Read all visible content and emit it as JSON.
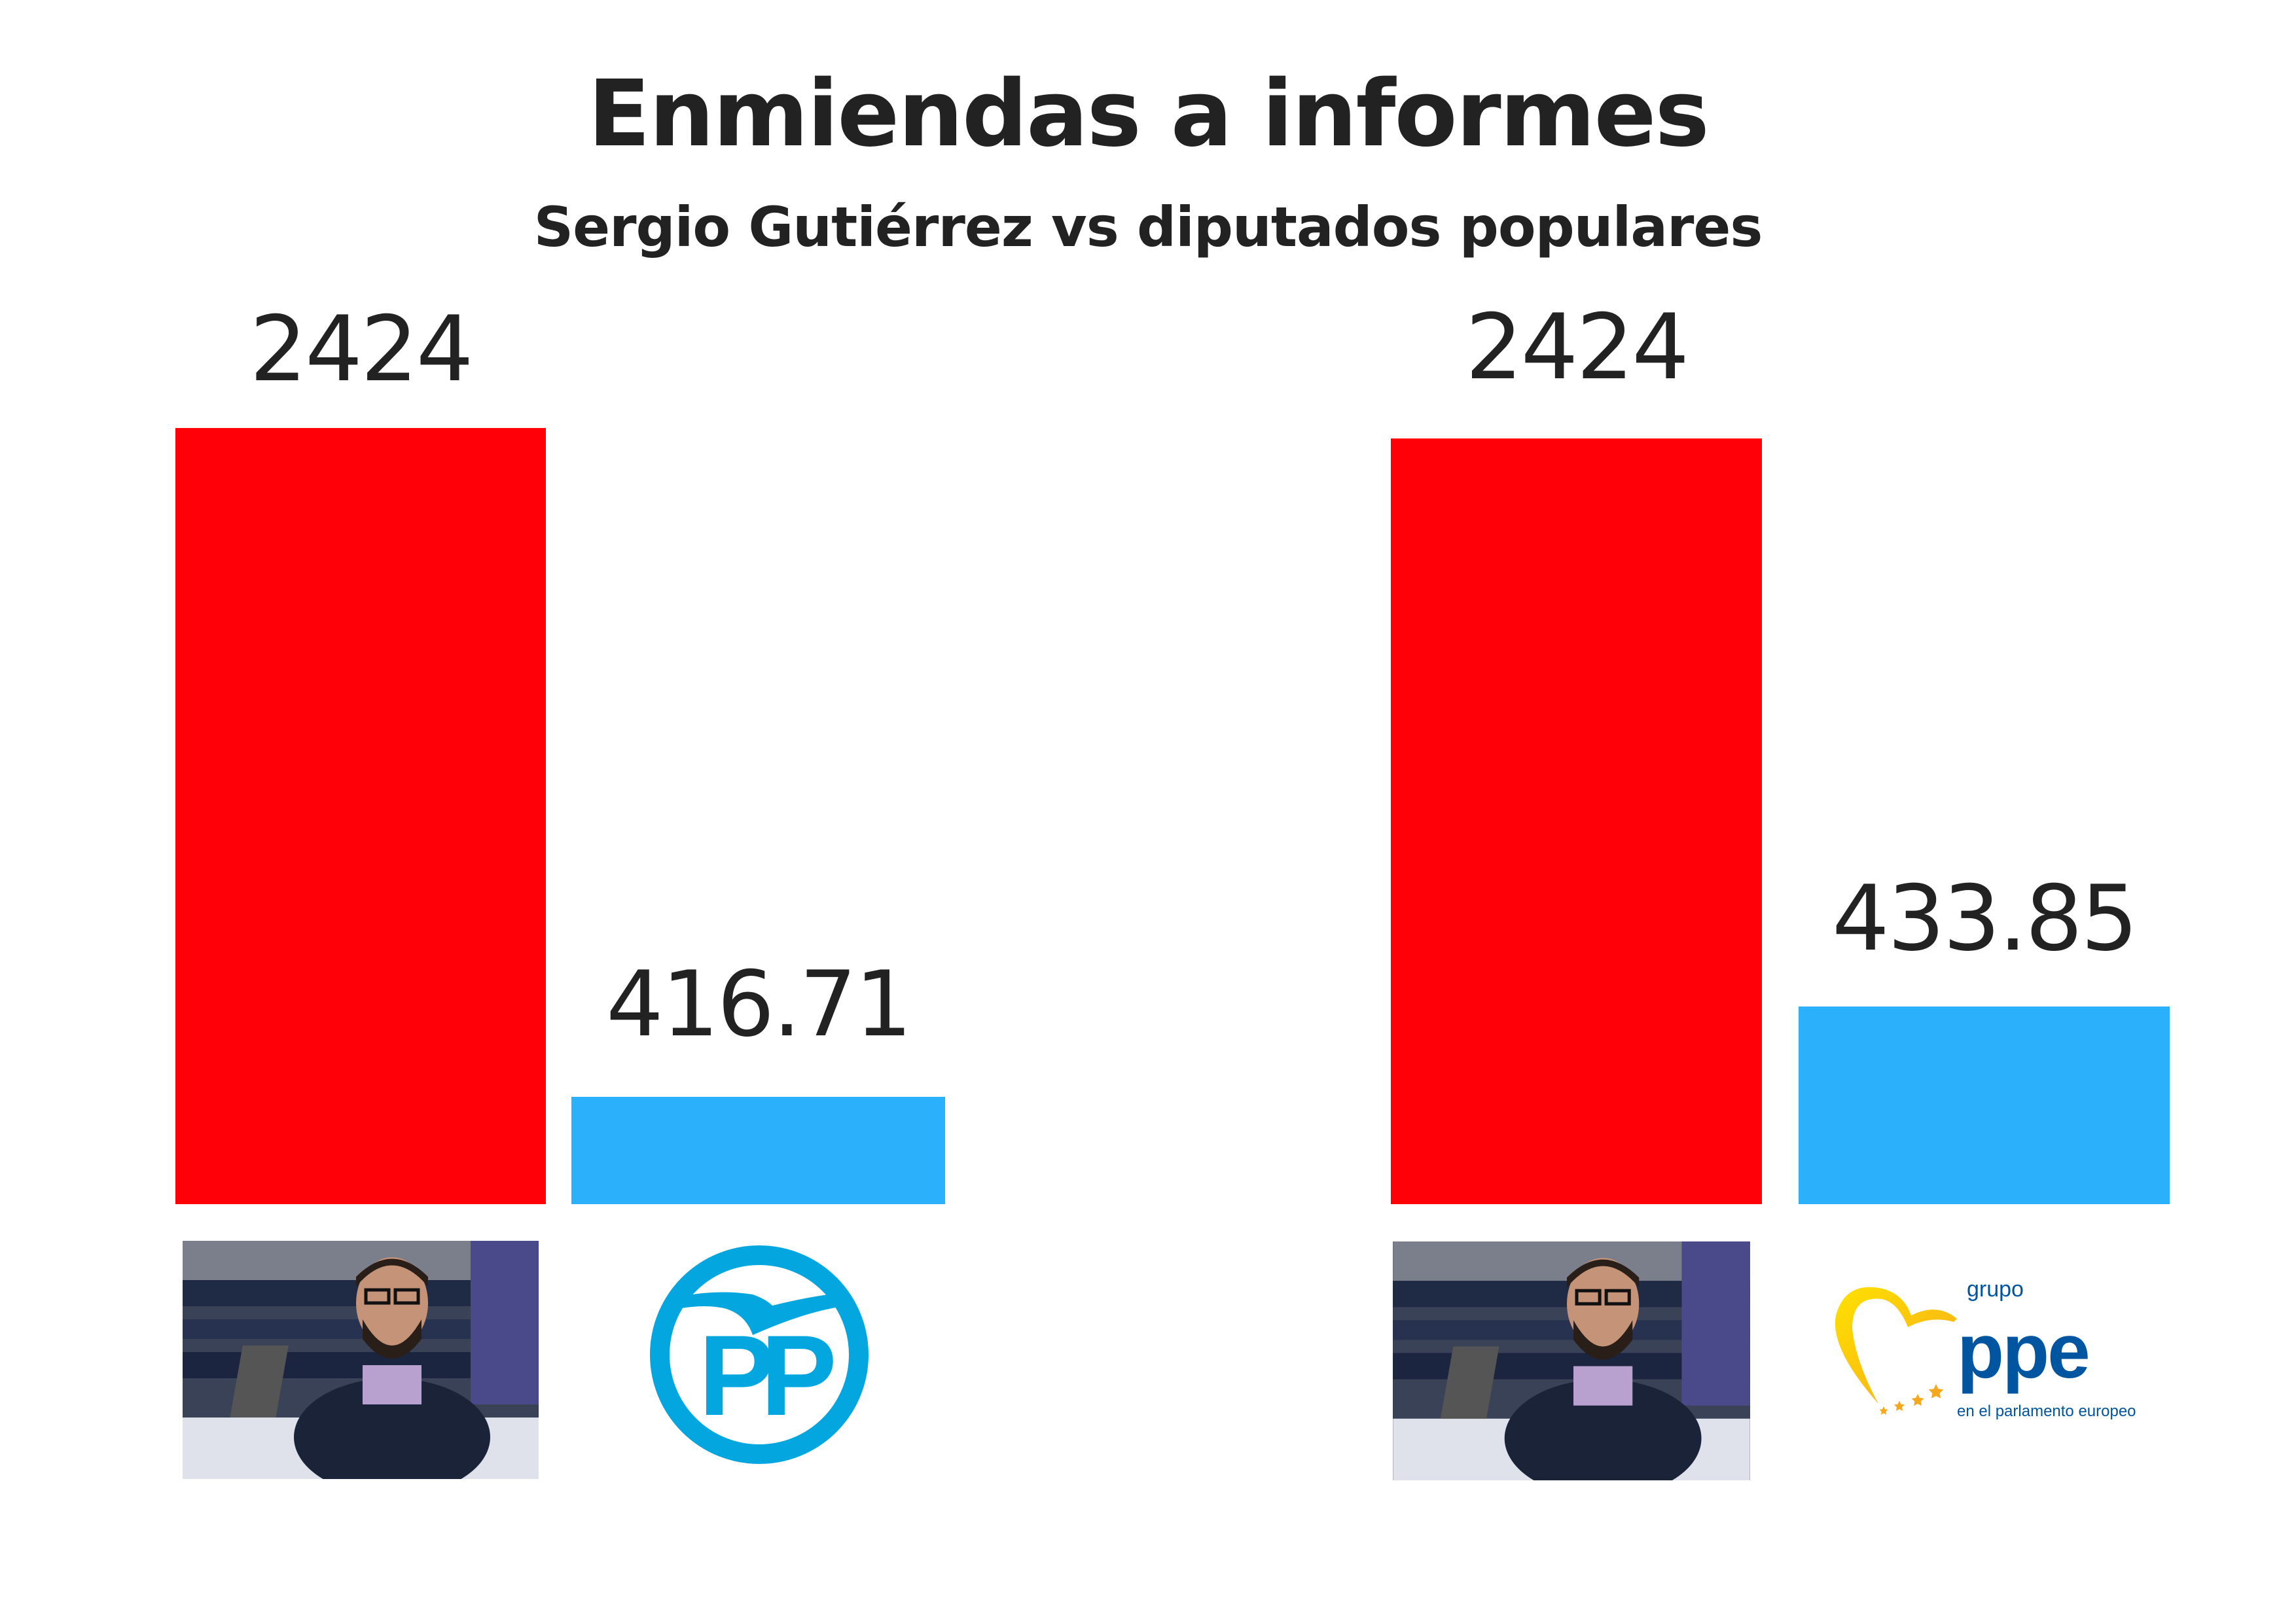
{
  "chart_data": [
    {
      "type": "bar",
      "title": "Enmiendas a informes",
      "subtitle": "Sergio Gutiérrez vs diputados populares",
      "categories": [
        "Sergio Gutiérrez",
        "PP"
      ],
      "values": [
        2424,
        416.71
      ],
      "value_labels": [
        "2424",
        "416.71"
      ],
      "colors": [
        "#ff0008",
        "#2bb0fc"
      ]
    },
    {
      "type": "bar",
      "categories": [
        "Sergio Gutiérrez",
        "Grupo PPE"
      ],
      "values": [
        2424,
        433.85
      ],
      "value_labels": [
        "2424",
        "433.85"
      ],
      "colors": [
        "#ff0008",
        "#2bb0fc"
      ]
    }
  ],
  "logos": {
    "pp": "PP",
    "ppe_top": "grupo",
    "ppe_main": "ppe",
    "ppe_bottom": "en el parlamento europeo"
  }
}
